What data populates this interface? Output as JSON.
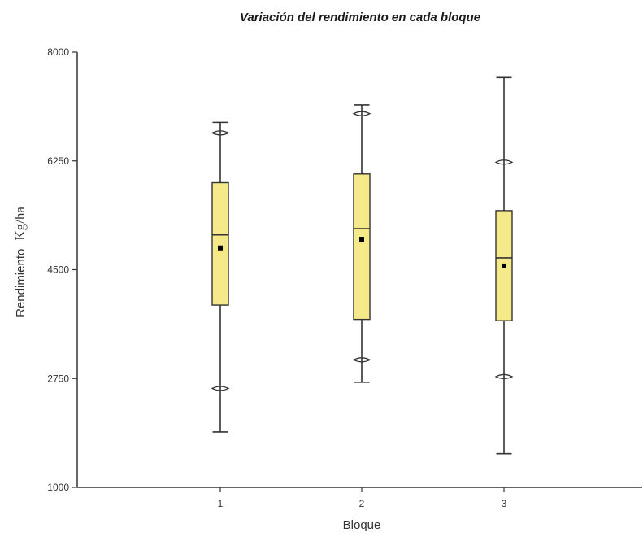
{
  "chart_data": {
    "type": "boxplot",
    "title": "Variación del rendimiento en cada bloque",
    "xlabel": "Bloque",
    "ylabel": "Rendimiento",
    "ylabel_unit": "Kg/ha",
    "ylim": [
      1000,
      8000
    ],
    "yticks": [
      1000,
      2750,
      4500,
      6250,
      8000
    ],
    "box_color": "#f5e98a",
    "categories": [
      "1",
      "2",
      "3"
    ],
    "boxes": [
      {
        "category": "1",
        "min": 1890,
        "p5": 2590,
        "q1": 3930,
        "median": 5060,
        "q3": 5900,
        "p95": 6700,
        "max": 6870,
        "mean": 4850
      },
      {
        "category": "2",
        "min": 2690,
        "p5": 3050,
        "q1": 3700,
        "median": 5160,
        "q3": 6040,
        "p95": 7010,
        "max": 7150,
        "mean": 4990
      },
      {
        "category": "3",
        "min": 1540,
        "p5": 2780,
        "q1": 3680,
        "median": 4690,
        "q3": 5450,
        "p95": 6230,
        "max": 7590,
        "mean": 4560
      }
    ]
  }
}
